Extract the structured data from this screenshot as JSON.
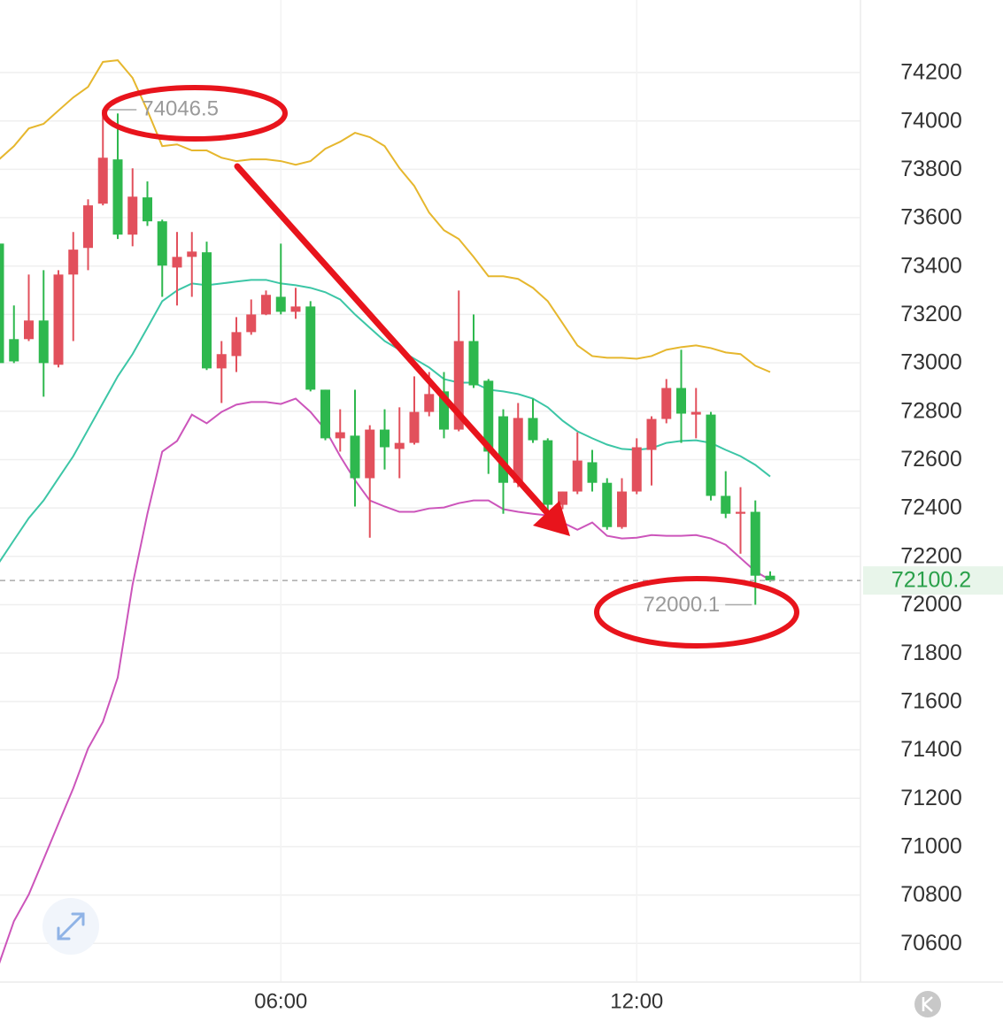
{
  "chart_data": {
    "type": "candlestick",
    "categories": [
      null,
      null,
      null,
      null,
      null,
      null,
      null,
      null,
      null,
      null,
      null,
      null,
      null,
      null,
      null,
      null,
      null,
      null,
      null,
      "06:00",
      null,
      null,
      null,
      null,
      null,
      null,
      null,
      null,
      null,
      null,
      null,
      null,
      null,
      null,
      null,
      null,
      null,
      null,
      null,
      null,
      null,
      null,
      null,
      "12:00",
      null,
      null,
      null,
      null,
      null,
      null,
      null,
      null,
      null
    ],
    "open": [
      73493,
      73098,
      73098,
      73175,
      72992,
      73365,
      73475,
      73658,
      73841,
      73530,
      73684,
      73585,
      73394,
      73438,
      73457,
      72977,
      73028,
      73127,
      73200,
      73273,
      73211,
      73233,
      72889,
      72688,
      72699,
      72523,
      72724,
      72644,
      72669,
      72797,
      72882,
      72724,
      73090,
      72926,
      72779,
      72504,
      72772,
      72680,
      72413,
      72468,
      72589,
      72504,
      72321,
      72468,
      72640,
      72768,
      72896,
      72786,
      72786,
      72450,
      72376,
      72384,
      72120
    ],
    "high": [
      73702,
      73237,
      73365,
      73383,
      73383,
      73541,
      73676,
      74046.5,
      74031,
      73804,
      73750,
      73592,
      73541,
      73541,
      73501,
      73090,
      73189,
      73262,
      73299,
      73493,
      73310,
      73255,
      72889,
      72808,
      72889,
      72742,
      72808,
      72816,
      72944,
      72962,
      72962,
      73299,
      73200,
      72933,
      72808,
      72834,
      72852,
      72688,
      72468,
      72713,
      72640,
      72523,
      72523,
      72688,
      72779,
      72933,
      73054,
      72896,
      72797,
      72552,
      72486,
      72431,
      72138
    ],
    "low": [
      72871,
      72999,
      73090,
      72860,
      72981,
      73090,
      73383,
      73651,
      73512,
      73482,
      73566,
      73273,
      73237,
      73273,
      72970,
      72834,
      72962,
      73116,
      73197,
      73200,
      73182,
      72882,
      72680,
      72633,
      72406,
      72277,
      72559,
      72523,
      72662,
      72779,
      72688,
      72717,
      72896,
      72541,
      72376,
      72486,
      72669,
      72376,
      72395,
      72457,
      72468,
      72310,
      72314,
      72457,
      72493,
      72750,
      72669,
      72688,
      72431,
      72358,
      72211,
      72000.1,
      72095
    ],
    "close": [
      72999,
      73006,
      73175,
      72999,
      73365,
      73468,
      73651,
      73848,
      73530,
      73687,
      73585,
      73402,
      73438,
      73460,
      72977,
      73036,
      73127,
      73200,
      73281,
      73211,
      73233,
      72889,
      72688,
      72713,
      72523,
      72724,
      72651,
      72669,
      72797,
      72871,
      72724,
      73090,
      72907,
      72633,
      72504,
      72772,
      72680,
      72413,
      72468,
      72596,
      72504,
      72321,
      72468,
      72651,
      72768,
      72896,
      72790,
      72797,
      72450,
      72376,
      72384,
      72120,
      72100.2
    ],
    "up_color": "#e2505c",
    "down_color": "#2eb84e",
    "lines": [
      {
        "color": "#e6b72e",
        "values": [
          73841,
          73896,
          73969,
          73988,
          74043,
          74097,
          74141,
          74244,
          74251,
          74178,
          74043,
          73896,
          73903,
          73878,
          73878,
          73848,
          73834,
          73841,
          73841,
          73834,
          73819,
          73834,
          73885,
          73914,
          73951,
          73933,
          73896,
          73805,
          73731,
          73621,
          73548,
          73512,
          73438,
          73358,
          73358,
          73347,
          73310,
          73255,
          73164,
          73072,
          73028,
          73021,
          73021,
          73017,
          73028,
          73054,
          73065,
          73072,
          73061,
          73043,
          73036,
          72988,
          72962
        ]
      },
      {
        "color": "#3cc6a6",
        "values": [
          72175,
          72267,
          72358,
          72431,
          72523,
          72614,
          72724,
          72834,
          72944,
          73036,
          73145,
          73255,
          73299,
          73328,
          73321,
          73328,
          73336,
          73343,
          73343,
          73328,
          73321,
          73310,
          73292,
          73262,
          73200,
          73145,
          73090,
          73054,
          73017,
          72981,
          72933,
          72918,
          72918,
          72889,
          72882,
          72871,
          72852,
          72816,
          72761,
          72717,
          72688,
          72662,
          72644,
          72640,
          72647,
          72669,
          72677,
          72680,
          72669,
          72640,
          72614,
          72578,
          72530
        ]
      },
      {
        "color": "#cc55bb",
        "values": [
          70516,
          70692,
          70802,
          70948,
          71095,
          71241,
          71406,
          71516,
          71699,
          72083,
          72376,
          72633,
          72677,
          72786,
          72750,
          72797,
          72827,
          72838,
          72838,
          72830,
          72852,
          72797,
          72724,
          72614,
          72515,
          72431,
          72406,
          72384,
          72384,
          72398,
          72402,
          72420,
          72431,
          72431,
          72395,
          72384,
          72376,
          72369,
          72340,
          72310,
          72340,
          72285,
          72274,
          72277,
          72288,
          72285,
          72285,
          72288,
          72274,
          72248,
          72193,
          72138,
          72102
        ]
      }
    ],
    "ylim": [
      70440,
      74500
    ],
    "yticks": [
      70600,
      70800,
      71000,
      71200,
      71400,
      71600,
      71800,
      72000,
      72200,
      72400,
      72600,
      72800,
      73000,
      73200,
      73400,
      73600,
      73800,
      74000,
      74200
    ],
    "grid": true
  }
}
